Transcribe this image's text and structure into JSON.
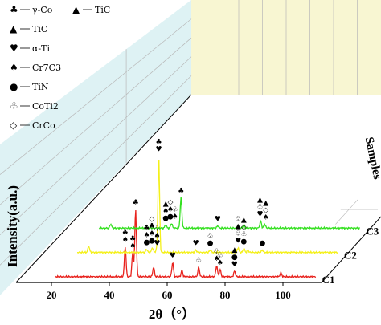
{
  "chart_data": {
    "type": "line",
    "style": "3d-waterfall",
    "xlabel": "2θ（°）",
    "ylabel": "Intensity(a.u.)",
    "zlabel": "Samples",
    "xlim": [
      20,
      110
    ],
    "x_ticks": [
      20,
      40,
      60,
      80,
      100
    ],
    "x_tick_labels": [
      "20",
      "40",
      "60",
      "80",
      "100"
    ],
    "grid": true,
    "legend_position": "top-left",
    "legend": [
      {
        "symbol": "♣",
        "label": "γ-Co"
      },
      {
        "symbol": "▲",
        "label": "TiC"
      },
      {
        "symbol": "♥",
        "label": "α-Ti"
      },
      {
        "symbol": "♠",
        "label": "Cr7C3"
      },
      {
        "symbol": "●",
        "label": "TiN"
      },
      {
        "symbol": "♧",
        "label": "CoTi2"
      },
      {
        "symbol": "◇",
        "label": "CrCo"
      }
    ],
    "series": [
      {
        "name": "C1",
        "color": "#e8211c",
        "baseline": 1.0,
        "peaks": [
          {
            "x": 44.2,
            "height": 38
          },
          {
            "x": 46.8,
            "height": 30
          },
          {
            "x": 47.8,
            "height": 84
          },
          {
            "x": 54.0,
            "height": 12
          },
          {
            "x": 60.6,
            "height": 18
          },
          {
            "x": 63.8,
            "height": 8
          },
          {
            "x": 69.6,
            "height": 12
          },
          {
            "x": 75.8,
            "height": 14
          },
          {
            "x": 77.0,
            "height": 9
          },
          {
            "x": 82.0,
            "height": 7
          },
          {
            "x": 98.0,
            "height": 5
          }
        ],
        "annotations": [
          {
            "x": 44.2,
            "symbols": [
              "♣",
              "♠"
            ]
          },
          {
            "x": 46.8,
            "symbols": [
              "♣",
              "♠"
            ]
          },
          {
            "x": 47.8,
            "symbols": [
              "♣"
            ]
          },
          {
            "x": 60.6,
            "symbols": [
              "♥"
            ]
          },
          {
            "x": 69.6,
            "symbols": [
              "♧"
            ]
          },
          {
            "x": 75.8,
            "symbols": [
              "♧",
              "♠"
            ]
          },
          {
            "x": 77.0,
            "symbols": [
              "♧",
              "♠"
            ]
          },
          {
            "x": 82.0,
            "symbols": [
              "▲",
              "●",
              "♥"
            ]
          }
        ]
      },
      {
        "name": "C2",
        "color": "#f4f01a",
        "baseline": 2.0,
        "peaks": [
          {
            "x": 24.0,
            "height": 8
          },
          {
            "x": 44.0,
            "height": 4
          },
          {
            "x": 46.0,
            "height": 6
          },
          {
            "x": 47.4,
            "height": 3
          },
          {
            "x": 48.2,
            "height": 120
          },
          {
            "x": 61.0,
            "height": 3
          },
          {
            "x": 66.0,
            "height": 3
          },
          {
            "x": 75.6,
            "height": 6
          },
          {
            "x": 77.6,
            "height": 5
          },
          {
            "x": 79.0,
            "height": 3
          },
          {
            "x": 84.0,
            "height": 3
          }
        ],
        "annotations": [
          {
            "x": 44.0,
            "symbols": [
              "♣",
              "♠",
              "●"
            ]
          },
          {
            "x": 45.8,
            "symbols": [
              "◇",
              "♣",
              "♠",
              "●"
            ]
          },
          {
            "x": 47.6,
            "symbols": [
              "♧",
              "♠",
              "♥"
            ]
          },
          {
            "x": 48.2,
            "symbols": [
              "♣",
              "♥"
            ]
          },
          {
            "x": 61.0,
            "symbols": [
              "♥"
            ]
          },
          {
            "x": 66.0,
            "symbols": [
              "♧",
              "●"
            ]
          },
          {
            "x": 75.6,
            "symbols": [
              "▲",
              "♧",
              "♥"
            ]
          },
          {
            "x": 77.6,
            "symbols": [
              "▲",
              "◇",
              "♧",
              "●"
            ]
          },
          {
            "x": 84.0,
            "symbols": [
              "●"
            ]
          }
        ]
      },
      {
        "name": "C3",
        "color": "#33e01f",
        "baseline": 3.0,
        "peaks": [
          {
            "x": 24.0,
            "height": 5
          },
          {
            "x": 43.0,
            "height": 4
          },
          {
            "x": 45.0,
            "height": 6
          },
          {
            "x": 48.3,
            "height": 38
          },
          {
            "x": 61.0,
            "height": 3
          },
          {
            "x": 68.0,
            "height": 3
          },
          {
            "x": 70.0,
            "height": 4
          },
          {
            "x": 75.8,
            "height": 9
          },
          {
            "x": 77.2,
            "height": 5
          }
        ],
        "annotations": [
          {
            "x": 43.0,
            "symbols": [
              "▲",
              "♠",
              "●"
            ]
          },
          {
            "x": 44.6,
            "symbols": [
              "◇",
              "♠",
              "●"
            ]
          },
          {
            "x": 46.2,
            "symbols": [
              "♧",
              "♠"
            ]
          },
          {
            "x": 48.3,
            "symbols": [
              "♣"
            ]
          },
          {
            "x": 61.0,
            "symbols": [
              "♥"
            ]
          },
          {
            "x": 68.0,
            "symbols": [
              "♧"
            ]
          },
          {
            "x": 75.6,
            "symbols": [
              "▲",
              "♧",
              "♥"
            ]
          },
          {
            "x": 77.6,
            "symbols": [
              "▲",
              "◇",
              "♠"
            ]
          }
        ]
      }
    ],
    "extra_labels": [
      {
        "text": "♥",
        "series_index": 1,
        "note": "label above central yellow peak"
      }
    ]
  },
  "colors": {
    "back_wall": "#f8f6d2",
    "left_wall": "#d8f0f2",
    "grid": "#b8b8b8",
    "axis": "#000000"
  }
}
